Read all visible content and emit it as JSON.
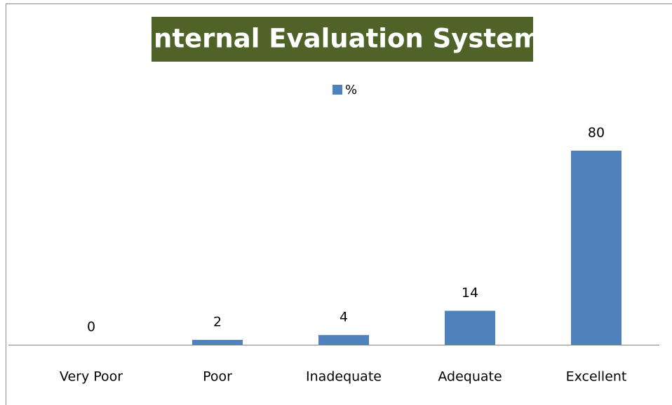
{
  "chart_data": {
    "type": "bar",
    "title": "Internal Evaluation System",
    "categories": [
      "Very Poor",
      "Poor",
      "Inadequate",
      "Adequate",
      "Excellent"
    ],
    "series": [
      {
        "name": "%",
        "color": "#4f81bd",
        "values": [
          0,
          2,
          4,
          14,
          80
        ]
      }
    ],
    "ylim": [
      0,
      90
    ],
    "legend": "top",
    "grid": false
  }
}
